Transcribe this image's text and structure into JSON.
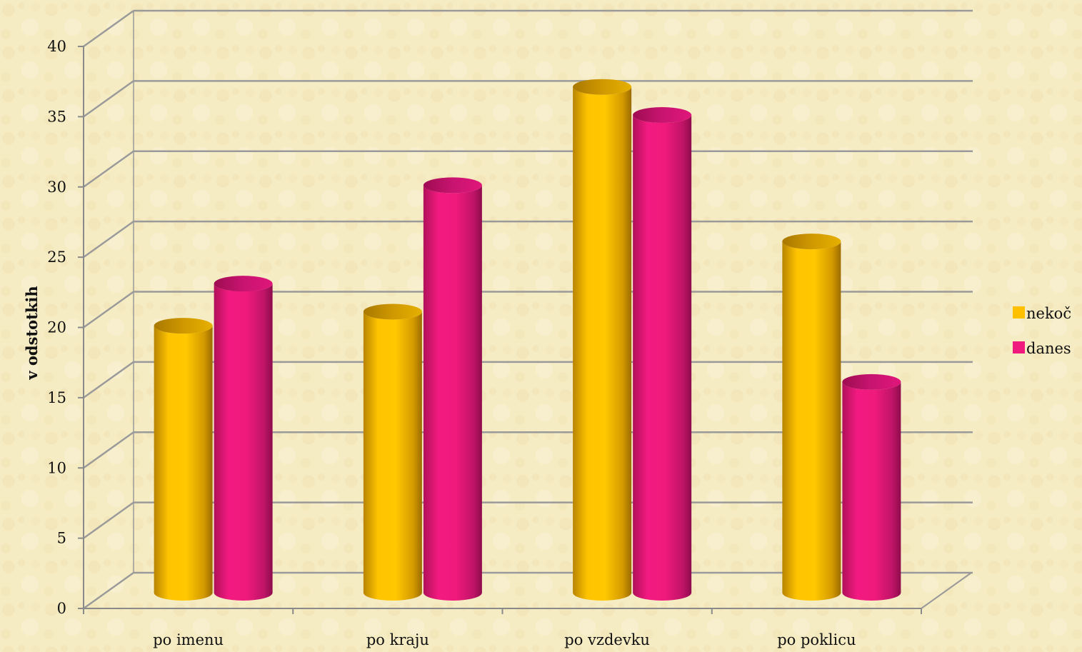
{
  "chart_data": {
    "type": "bar",
    "style": "3d-cylinder",
    "categories": [
      "po imenu",
      "po kraju",
      "po vzdevku",
      "po poklicu"
    ],
    "series": [
      {
        "name": "nekoč",
        "values": [
          19,
          20,
          36,
          25
        ],
        "color": "#ffc000"
      },
      {
        "name": "danes",
        "values": [
          22,
          29,
          34,
          15
        ],
        "color": "#f0197d"
      }
    ],
    "title": "",
    "xlabel": "",
    "ylabel": "v odstotkih",
    "ylim": [
      0,
      40
    ],
    "yticks": [
      "0",
      "5",
      "10",
      "15",
      "20",
      "25",
      "30",
      "35",
      "40"
    ],
    "grid": true,
    "legend_position": "right",
    "background": "#f6ecc4",
    "gridline_color": "#9a9a9a"
  }
}
